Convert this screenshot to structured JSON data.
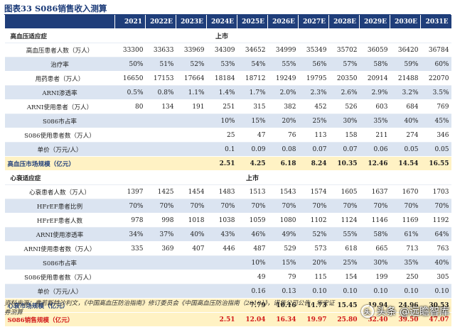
{
  "title": "图表33  S086销售收入测算",
  "header": {
    "blank": "",
    "years": [
      "2021",
      "2022E",
      "2023E",
      "2024E",
      "2025E",
      "2026E",
      "2027E",
      "2028E",
      "2029E",
      "2030E",
      "2031E"
    ]
  },
  "rows": [
    {
      "type": "sect",
      "label": "高血压适应症",
      "marker": "上市"
    },
    {
      "type": "plain",
      "label": "高血压患者人数（万人）",
      "values": [
        "33300",
        "33633",
        "33969",
        "34309",
        "34652",
        "34999",
        "35349",
        "35702",
        "36059",
        "36420",
        "36784"
      ]
    },
    {
      "type": "band",
      "label": "治疗率",
      "values": [
        "50%",
        "51%",
        "52%",
        "53%",
        "54%",
        "55%",
        "56%",
        "57%",
        "58%",
        "59%",
        "60%"
      ]
    },
    {
      "type": "plain",
      "label": "用药患者（万人）",
      "values": [
        "16650",
        "17153",
        "17664",
        "18184",
        "18712",
        "19249",
        "19795",
        "20350",
        "20914",
        "21488",
        "22070"
      ]
    },
    {
      "type": "band",
      "label": "ARNI渗透率",
      "values": [
        "0.5%",
        "0.8%",
        "1.1%",
        "1.4%",
        "1.7%",
        "2.0%",
        "2.3%",
        "2.6%",
        "2.9%",
        "3.2%",
        "3.5%"
      ]
    },
    {
      "type": "plain",
      "label": "ARNI使用患者（万人）",
      "values": [
        "80",
        "134",
        "191",
        "251",
        "315",
        "382",
        "452",
        "526",
        "603",
        "684",
        "769"
      ]
    },
    {
      "type": "band",
      "label": "S086市占率",
      "values": [
        "",
        "",
        "",
        "10%",
        "15%",
        "20%",
        "25%",
        "30%",
        "35%",
        "40%",
        "45%"
      ]
    },
    {
      "type": "plain",
      "label": "S086使用患者数（万人）",
      "values": [
        "",
        "",
        "",
        "25",
        "47",
        "76",
        "113",
        "158",
        "211",
        "274",
        "346"
      ]
    },
    {
      "type": "band",
      "label": "单价（万元/人）",
      "values": [
        "",
        "",
        "",
        "0.1",
        "0.09",
        "0.08",
        "0.07",
        "0.07",
        "0.06",
        "0.05",
        "0.05"
      ]
    },
    {
      "type": "yel",
      "label": "高血压市场规模（亿元）",
      "values": [
        "",
        "",
        "",
        "2.51",
        "4.25",
        "6.18",
        "8.24",
        "10.35",
        "12.46",
        "14.54",
        "16.55"
      ]
    },
    {
      "type": "sect",
      "label": "心衰适应症",
      "marker": "上市"
    },
    {
      "type": "plain",
      "label": "心衰患者人数（万人）",
      "values": [
        "1397",
        "1425",
        "1454",
        "1483",
        "1513",
        "1543",
        "1574",
        "1605",
        "1637",
        "1670",
        "1703"
      ]
    },
    {
      "type": "band",
      "label": "HFrEF患者比例",
      "values": [
        "70%",
        "70%",
        "70%",
        "70%",
        "70%",
        "70%",
        "70%",
        "70%",
        "70%",
        "70%",
        "70%"
      ]
    },
    {
      "type": "plain",
      "label": "HFrEF患者人数",
      "values": [
        "978",
        "998",
        "1018",
        "1038",
        "1059",
        "1080",
        "1102",
        "1124",
        "1146",
        "1169",
        "1192"
      ]
    },
    {
      "type": "band",
      "label": "ARNI使用渗透率",
      "values": [
        "34%",
        "37%",
        "40%",
        "43%",
        "46%",
        "49%",
        "52%",
        "55%",
        "58%",
        "61%",
        "64%"
      ]
    },
    {
      "type": "plain",
      "label": "ARNI使用患者数（万人）",
      "values": [
        "335",
        "369",
        "407",
        "446",
        "487",
        "529",
        "573",
        "618",
        "665",
        "713",
        "763"
      ]
    },
    {
      "type": "band",
      "label": "S086市占率",
      "values": [
        "",
        "",
        "",
        "",
        "10%",
        "15%",
        "20%",
        "25%",
        "30%",
        "35%",
        "40%"
      ]
    },
    {
      "type": "plain",
      "label": "S086使用患者数（万人）",
      "values": [
        "",
        "",
        "",
        "",
        "49",
        "79",
        "115",
        "154",
        "199",
        "250",
        "305"
      ]
    },
    {
      "type": "band",
      "label": "单价（万元/人）",
      "values": [
        "",
        "",
        "",
        "",
        "0.16",
        "0.13",
        "0.10",
        "0.10",
        "0.10",
        "0.10",
        "0.10"
      ]
    },
    {
      "type": "yel",
      "label": "心衰市场规模（亿元）",
      "values": [
        "",
        "",
        "",
        "",
        "7.79",
        "10.16",
        "11.73",
        "15.45",
        "19.94",
        "24.96",
        "30.53"
      ]
    },
    {
      "type": "yel red",
      "label": "S086销售规模（亿元）",
      "values": [
        "",
        "",
        "",
        "2.51",
        "12.04",
        "16.34",
        "19.97",
        "25.80",
        "32.40",
        "39.50",
        "47.07"
      ]
    }
  ],
  "source": "资料来源：弗若斯特沙利文，《中国高血压防治指南》修订委员会《中国高血压防治指南（2018）》，诺华公司公告，华安证券测算",
  "watermark": {
    "icon": "头",
    "text": "头条 @远瞻智库"
  }
}
